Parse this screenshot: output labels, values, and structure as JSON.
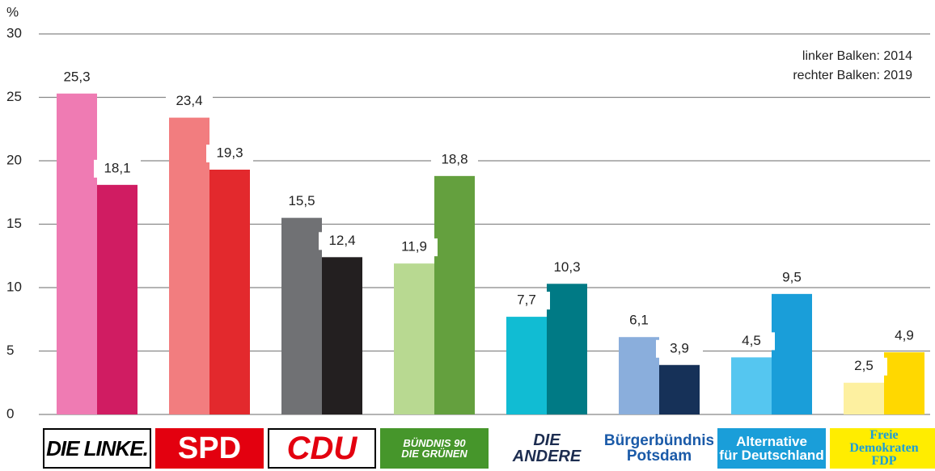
{
  "chart_data": {
    "type": "bar",
    "y_unit_label": "%",
    "categories": [
      "DIE LINKE.",
      "SPD",
      "CDU",
      "BÜNDNIS 90\nDIE GRÜNEN",
      "DIE\nANDERE",
      "Bürgerbündnis\nPotsdam",
      "Alternative\nfür Deutschland",
      "Freie\nDemokraten\nFDP"
    ],
    "series": [
      {
        "name": "linker Balken: 2014",
        "colors": [
          "#ef7bb3",
          "#f27d7f",
          "#707174",
          "#b8d991",
          "#11bcd3",
          "#8aaedc",
          "#55c6f0",
          "#fdf0a0"
        ],
        "values": [
          25.3,
          23.4,
          15.5,
          11.9,
          7.7,
          6.1,
          4.5,
          2.5
        ],
        "value_labels": [
          "25,3",
          "23,4",
          "15,5",
          "11,9",
          "7,7",
          "6,1",
          "4,5",
          "2,5"
        ]
      },
      {
        "name": "rechter Balken: 2019",
        "colors": [
          "#d01c62",
          "#e3292d",
          "#231f20",
          "#64a03e",
          "#007a85",
          "#163158",
          "#1a9ed9",
          "#ffd800"
        ],
        "values": [
          18.1,
          19.3,
          12.4,
          18.8,
          10.3,
          3.9,
          9.5,
          4.9
        ],
        "value_labels": [
          "18,1",
          "19,3",
          "12,4",
          "18,8",
          "10,3",
          "3,9",
          "9,5",
          "4,9"
        ]
      }
    ],
    "ylim": [
      0,
      30
    ],
    "yticks": [
      0,
      5,
      10,
      15,
      20,
      25,
      30
    ],
    "grid": true,
    "legend": "top-right"
  }
}
